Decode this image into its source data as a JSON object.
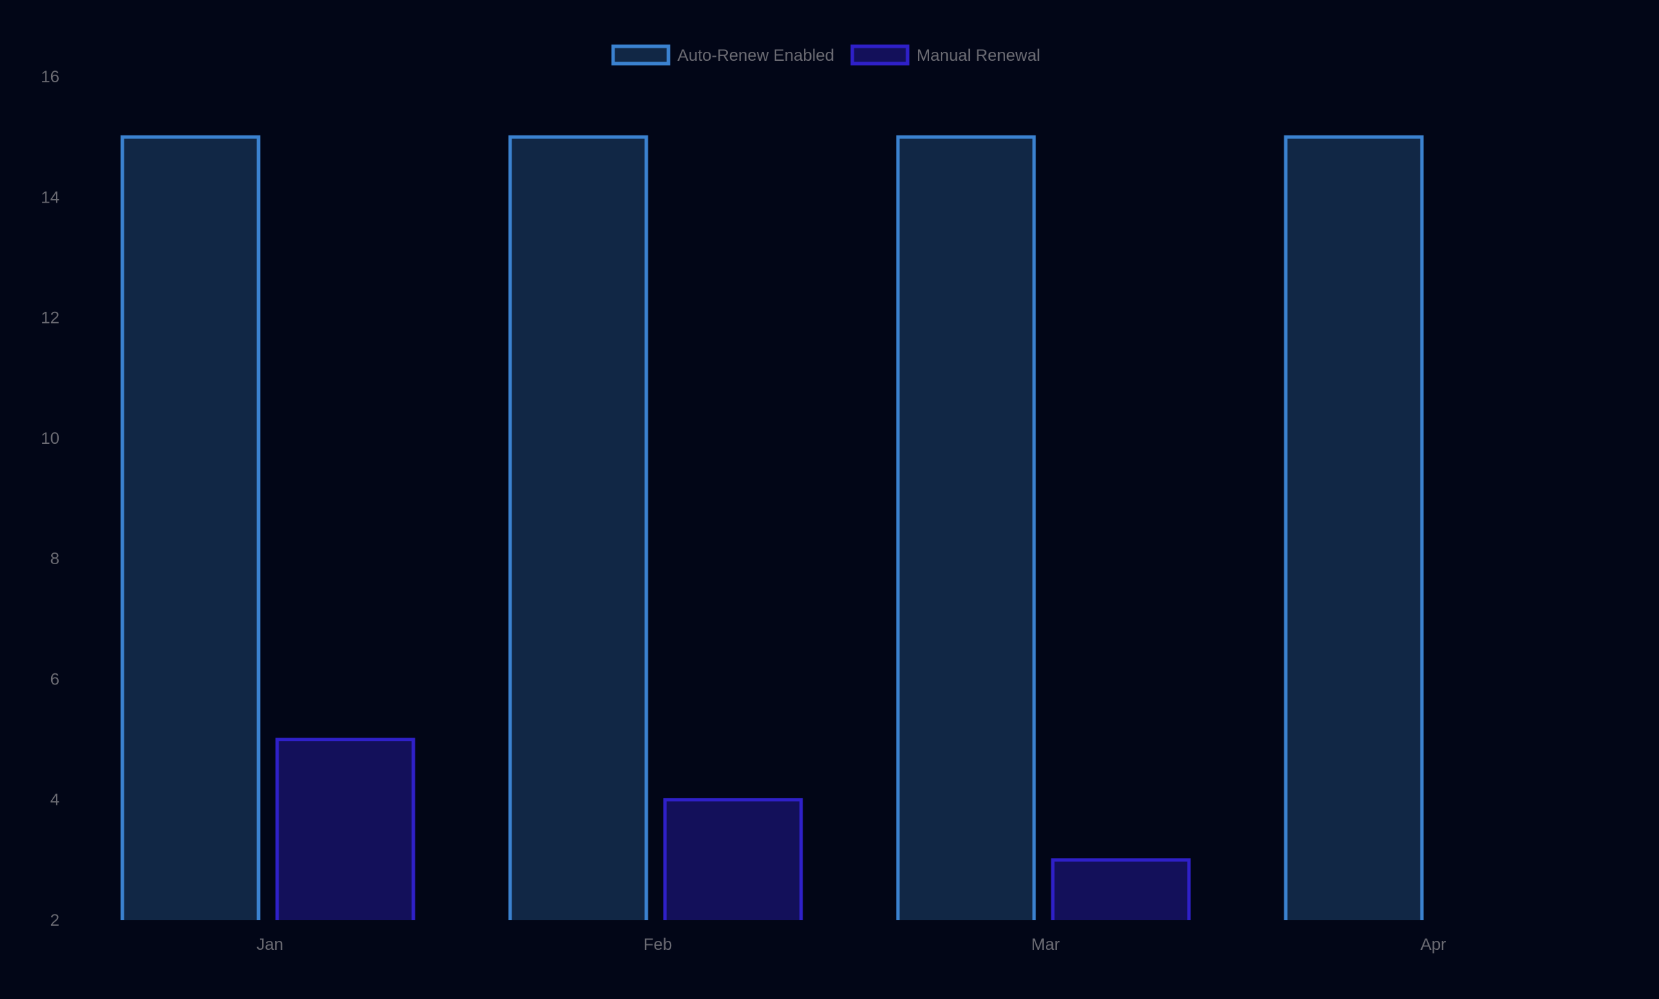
{
  "chart_data": {
    "type": "bar",
    "title": "",
    "xlabel": "",
    "ylabel": "",
    "categories": [
      "Jan",
      "Feb",
      "Mar",
      "Apr"
    ],
    "series": [
      {
        "name": "Auto-Renew Enabled",
        "values": [
          15,
          15,
          15,
          15
        ],
        "border_color": "#3b82d0",
        "fill_color": "#112745"
      },
      {
        "name": "Manual Renewal",
        "values": [
          5,
          4,
          3,
          2
        ],
        "border_color": "#2f20c8",
        "fill_color": "#13105a"
      }
    ],
    "ylim": [
      2,
      16
    ],
    "yticks": [
      2,
      4,
      6,
      8,
      10,
      12,
      14,
      16
    ],
    "grid": false,
    "legend_position": "top-center",
    "colors": {
      "background": "#020617",
      "text": "#6b6b73"
    }
  }
}
